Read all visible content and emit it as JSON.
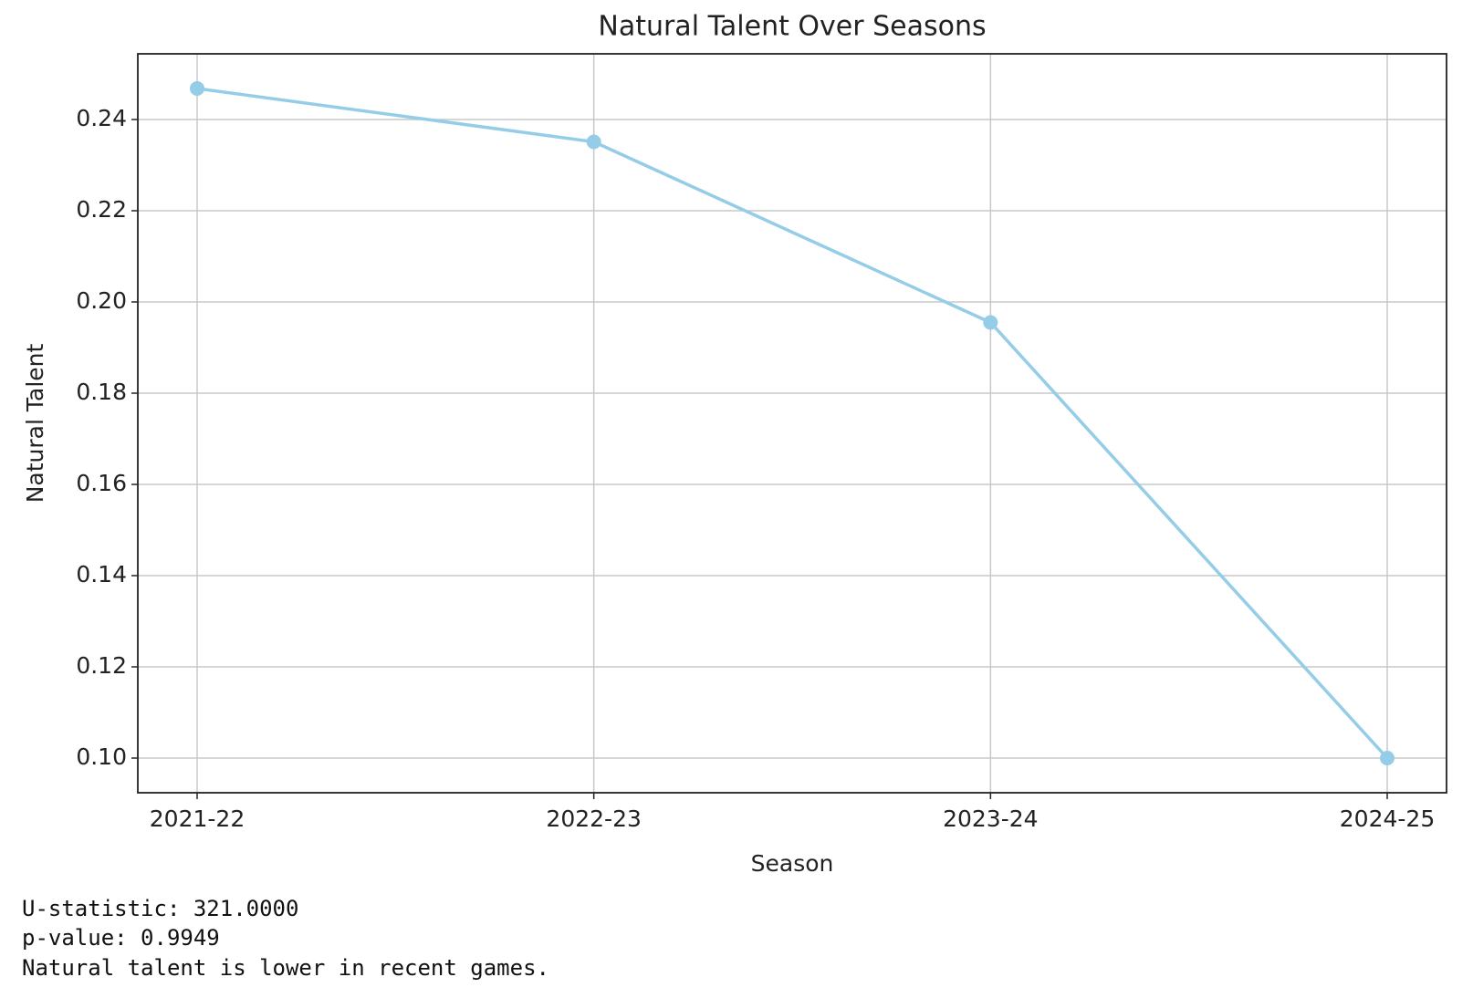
{
  "chart_data": {
    "type": "line",
    "title": "Natural Talent Over Seasons",
    "x_label": "Season",
    "y_label": "Natural Talent",
    "categories": [
      "2021-22",
      "2022-23",
      "2023-24",
      "2024-25"
    ],
    "series": [
      {
        "name": "Natural Talent",
        "color": "#95cde8",
        "values": [
          0.2468,
          0.2351,
          0.1955,
          0.1
        ]
      }
    ],
    "ylim": [
      0.0924,
      0.2544
    ],
    "yticks": [
      {
        "value": 0.1,
        "label": "0.10"
      },
      {
        "value": 0.12,
        "label": "0.12"
      },
      {
        "value": 0.14,
        "label": "0.14"
      },
      {
        "value": 0.16,
        "label": "0.16"
      },
      {
        "value": 0.18,
        "label": "0.18"
      },
      {
        "value": 0.2,
        "label": "0.20"
      },
      {
        "value": 0.22,
        "label": "0.22"
      },
      {
        "value": 0.24,
        "label": "0.24"
      }
    ],
    "grid": true
  },
  "output": [
    "U-statistic: 321.0000",
    "p-value: 0.9949",
    "Natural talent is lower in recent games."
  ]
}
